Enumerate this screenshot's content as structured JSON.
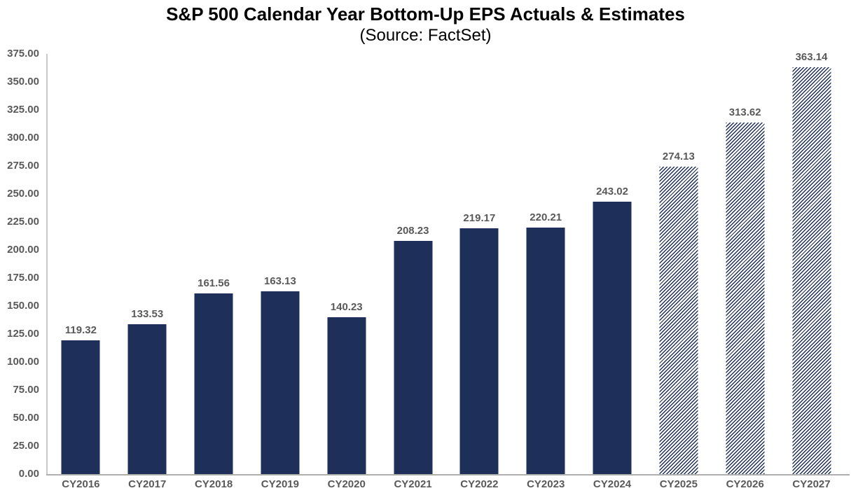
{
  "chart_data": {
    "type": "bar",
    "title": "S&P 500 Calendar Year Bottom-Up EPS Actuals & Estimates",
    "subtitle": "(Source: FactSet)",
    "categories": [
      "CY2016",
      "CY2017",
      "CY2018",
      "CY2019",
      "CY2020",
      "CY2021",
      "CY2022",
      "CY2023",
      "CY2024",
      "CY2025",
      "CY2026",
      "CY2027"
    ],
    "values": [
      119.32,
      133.53,
      161.56,
      163.13,
      140.23,
      208.23,
      219.17,
      220.21,
      243.02,
      274.13,
      313.62,
      363.14
    ],
    "estimate_flags": [
      false,
      false,
      false,
      false,
      false,
      false,
      false,
      false,
      false,
      true,
      true,
      true
    ],
    "ylim": [
      0,
      375
    ],
    "ytick_step": 25,
    "ytick_decimals": 2,
    "value_label_decimals": 2,
    "grid": false,
    "legend_position": "none",
    "bar_style_actual": "solid",
    "bar_style_estimate": "diagonal-hatch",
    "colors": {
      "bar": "#1E2F5A",
      "hatch_background": "#FFFFFF",
      "title_text": "#000000",
      "subtitle_text": "#000000",
      "label_text": "#595959",
      "y_axis_line": "#C9C9C9",
      "x_axis_line": "#AFAFAF",
      "background": "#FFFFFF"
    }
  }
}
